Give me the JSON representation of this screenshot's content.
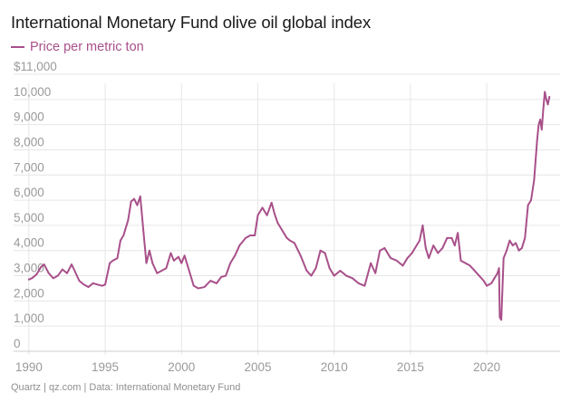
{
  "header": {
    "title": "International Monetary Fund olive oil global index"
  },
  "footer": {
    "source": "Quartz | qz.com | Data: International Monetary Fund"
  },
  "colors": {
    "series": "#a8508a",
    "grid": "#e6e6e6",
    "axis_text": "#9a9a9a",
    "title": "#1a1a1a"
  },
  "chart_data": {
    "type": "line",
    "title": "International Monetary Fund olive oil global index",
    "xlabel": "",
    "ylabel": "",
    "xlim": [
      1989,
      2024.8
    ],
    "ylim": [
      0,
      11000
    ],
    "x_ticks": [
      1990,
      1995,
      2000,
      2005,
      2010,
      2015,
      2020
    ],
    "x_tick_labels": [
      "1990",
      "1995",
      "2000",
      "2005",
      "2010",
      "2015",
      "2020"
    ],
    "y_ticks": [
      0,
      1000,
      2000,
      3000,
      4000,
      5000,
      6000,
      7000,
      8000,
      9000,
      10000,
      11000
    ],
    "y_tick_labels": [
      "0",
      "1,000",
      "2,000",
      "3,000",
      "4,000",
      "5,000",
      "6,000",
      "7,000",
      "8,000",
      "9,000",
      "10,000",
      "$11,000"
    ],
    "grid": true,
    "legend_position": "top-left",
    "series": [
      {
        "name": "Price per metric ton",
        "x": [
          1990.0,
          1990.2,
          1990.5,
          1990.8,
          1991.0,
          1991.3,
          1991.6,
          1991.9,
          1992.2,
          1992.5,
          1992.8,
          1993.0,
          1993.3,
          1993.6,
          1993.9,
          1994.2,
          1994.5,
          1994.8,
          1995.0,
          1995.3,
          1995.5,
          1995.8,
          1996.0,
          1996.2,
          1996.5,
          1996.7,
          1996.9,
          1997.1,
          1997.3,
          1997.5,
          1997.7,
          1997.9,
          1998.1,
          1998.4,
          1998.7,
          1999.0,
          1999.3,
          1999.5,
          1999.8,
          2000.0,
          2000.2,
          2000.5,
          2000.8,
          2001.1,
          2001.5,
          2001.9,
          2002.3,
          2002.6,
          2002.9,
          2003.2,
          2003.5,
          2003.8,
          2004.2,
          2004.5,
          2004.8,
          2005.0,
          2005.3,
          2005.6,
          2005.9,
          2006.1,
          2006.3,
          2006.6,
          2006.9,
          2007.1,
          2007.4,
          2007.8,
          2008.2,
          2008.5,
          2008.8,
          2009.1,
          2009.4,
          2009.7,
          2010.0,
          2010.4,
          2010.8,
          2011.2,
          2011.6,
          2012.0,
          2012.4,
          2012.7,
          2013.0,
          2013.3,
          2013.7,
          2014.1,
          2014.5,
          2014.8,
          2015.1,
          2015.4,
          2015.6,
          2015.8,
          2016.0,
          2016.2,
          2016.5,
          2016.8,
          2017.1,
          2017.4,
          2017.7,
          2017.9,
          2018.1,
          2018.3,
          2018.6,
          2018.9,
          2019.2,
          2019.5,
          2019.8,
          2020.0,
          2020.3,
          2020.5,
          2020.7,
          2020.8,
          2020.85,
          2020.95,
          2021.1,
          2021.3,
          2021.5,
          2021.7,
          2021.9,
          2022.1,
          2022.3,
          2022.5,
          2022.7,
          2022.9,
          2023.1,
          2023.3,
          2023.4,
          2023.5,
          2023.6,
          2023.7,
          2023.8,
          2023.9,
          2024.0,
          2024.1
        ],
        "values": [
          2850,
          2900,
          3050,
          3350,
          3450,
          3100,
          2900,
          3000,
          3250,
          3100,
          3450,
          3200,
          2800,
          2650,
          2550,
          2700,
          2650,
          2600,
          2650,
          3500,
          3600,
          3700,
          4400,
          4600,
          5200,
          5950,
          6050,
          5800,
          6150,
          4800,
          3500,
          4000,
          3500,
          3100,
          3200,
          3300,
          3900,
          3600,
          3750,
          3500,
          3800,
          3200,
          2600,
          2500,
          2550,
          2800,
          2700,
          2950,
          3000,
          3500,
          3800,
          4200,
          4500,
          4600,
          4600,
          5400,
          5700,
          5400,
          5900,
          5450,
          5100,
          4800,
          4500,
          4400,
          4300,
          3800,
          3200,
          3000,
          3300,
          4000,
          3900,
          3300,
          3000,
          3200,
          3000,
          2900,
          2700,
          2600,
          3500,
          3100,
          4000,
          4100,
          3700,
          3600,
          3400,
          3700,
          3900,
          4200,
          4400,
          5000,
          4100,
          3700,
          4200,
          3900,
          4100,
          4500,
          4500,
          4200,
          4700,
          3600,
          3500,
          3400,
          3200,
          3000,
          2800,
          2600,
          2700,
          2900,
          3100,
          3300,
          1350,
          1250,
          3700,
          4000,
          4400,
          4200,
          4300,
          4000,
          4100,
          4500,
          5800,
          6000,
          6800,
          8400,
          9000,
          9200,
          8800,
          9600,
          10300,
          10000,
          9800,
          10100
        ]
      }
    ]
  }
}
